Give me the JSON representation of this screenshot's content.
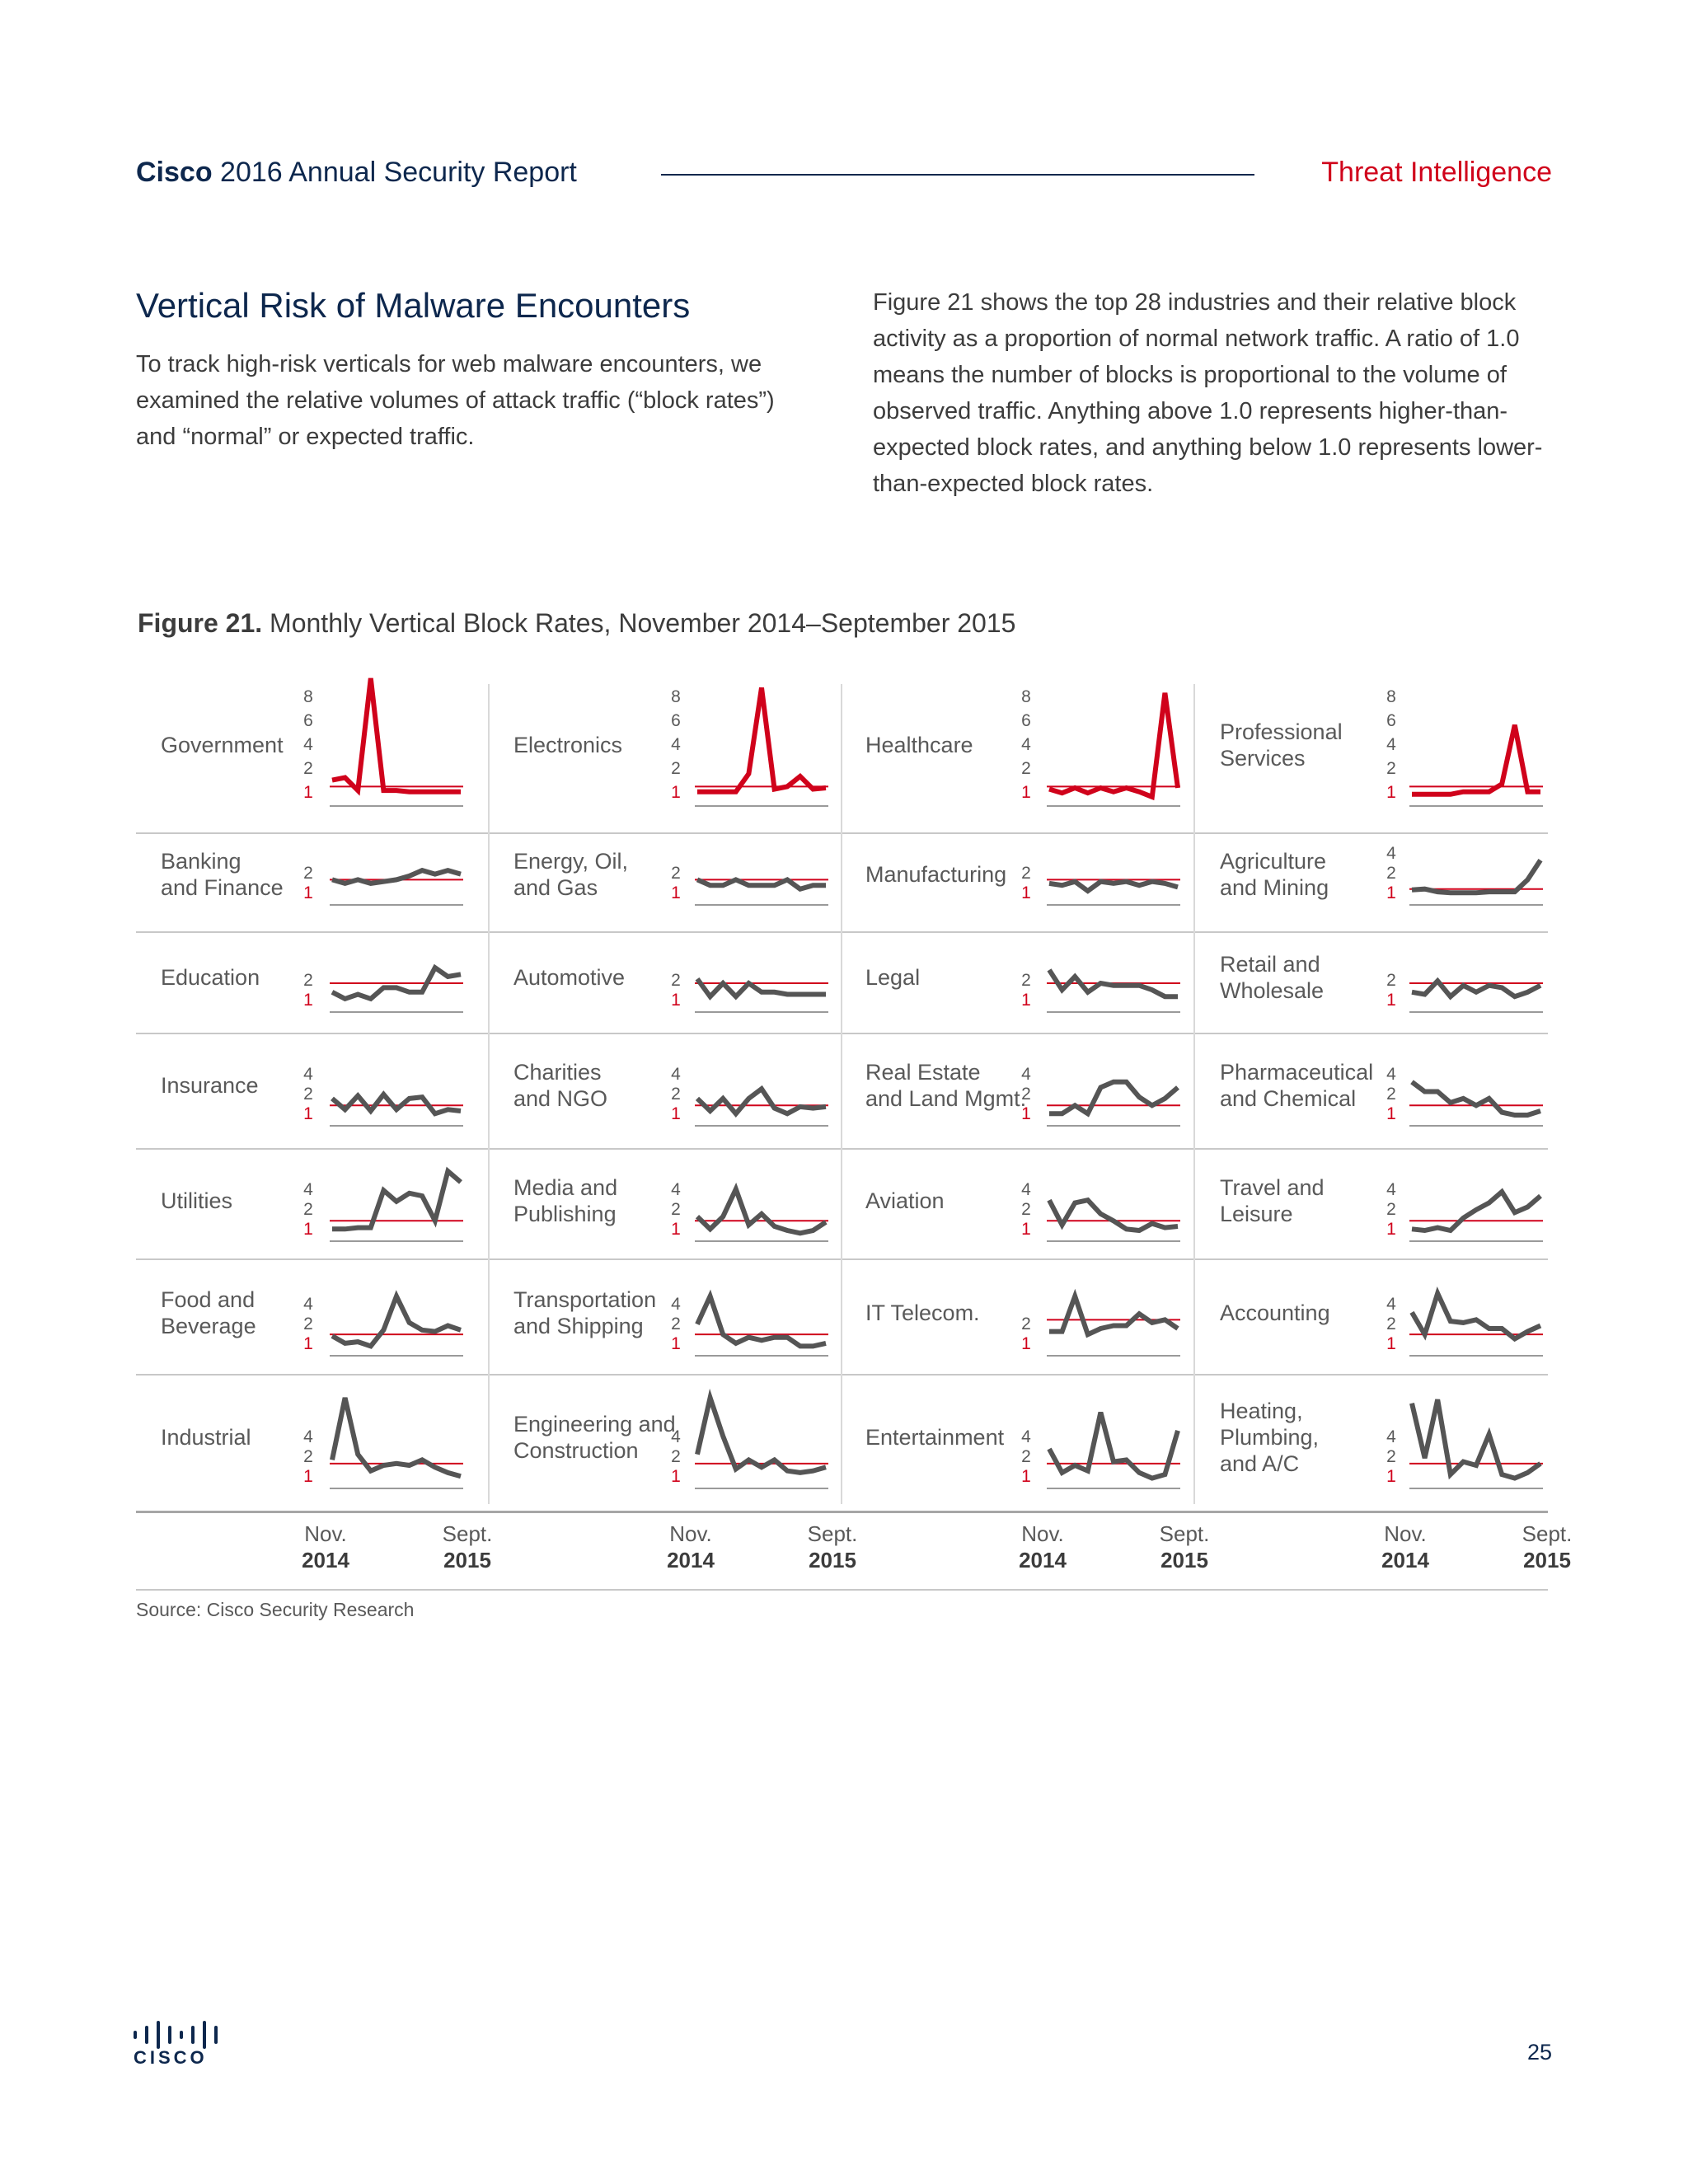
{
  "header": {
    "brand": "Cisco",
    "report": "2016 Annual Security Report",
    "section": "Threat Intelligence"
  },
  "article": {
    "heading": "Vertical Risk of Malware Encounters",
    "intro": "To track high-risk verticals for web malware encounters, we examined the relative volumes of attack traffic (“block rates”) and “normal” or expected traffic.",
    "body": "Figure 21 shows the top 28 industries and their relative block activity as a proportion of normal network traffic. A ratio of 1.0 means the number of blocks is proportional to the volume of observed traffic. Anything above 1.0 represents higher-than-expected block rates, and anything below 1.0 represents lower-than-expected block rates."
  },
  "figure": {
    "label": "Figure 21.",
    "title": "Monthly Vertical Block Rates, November 2014–September 2015",
    "x_start_month": "Nov.",
    "x_start_year": "2014",
    "x_end_month": "Sept.",
    "x_end_year": "2015",
    "source": "Source: Cisco Security Research"
  },
  "footer": {
    "page": "25",
    "logo_text": "CISCO"
  },
  "colors": {
    "accent_red": "#d0021b",
    "navy": "#0d274d",
    "line_gray": "#555555"
  },
  "chart_data": {
    "type": "line",
    "x": [
      "Nov 2014",
      "Dec 2014",
      "Jan 2015",
      "Feb 2015",
      "Mar 2015",
      "Apr 2015",
      "May 2015",
      "Jun 2015",
      "Jul 2015",
      "Aug 2015",
      "Sep 2015"
    ],
    "reference_line": 1.0,
    "panels": [
      {
        "name": "Government",
        "ticks": [
          "8",
          "6",
          "4",
          "2",
          "1"
        ],
        "ymax": 8,
        "color": "red",
        "values": [
          1.5,
          1.7,
          0.7,
          9.5,
          0.7,
          0.7,
          0.6,
          0.6,
          0.6,
          0.6,
          0.6
        ]
      },
      {
        "name": "Electronics",
        "ticks": [
          "8",
          "6",
          "4",
          "2",
          "1"
        ],
        "ymax": 8,
        "color": "red",
        "values": [
          0.6,
          0.6,
          0.6,
          0.6,
          2.0,
          8.7,
          0.8,
          1.0,
          1.8,
          0.8,
          0.9
        ]
      },
      {
        "name": "Healthcare",
        "ticks": [
          "8",
          "6",
          "4",
          "2",
          "1"
        ],
        "ymax": 8,
        "color": "red",
        "values": [
          0.8,
          0.5,
          0.9,
          0.5,
          0.9,
          0.6,
          0.9,
          0.6,
          0.2,
          8.3,
          0.9
        ]
      },
      {
        "name": "Professional\nServices",
        "ticks": [
          "8",
          "6",
          "4",
          "2",
          "1"
        ],
        "ymax": 8,
        "color": "red",
        "values": [
          0.4,
          0.4,
          0.4,
          0.4,
          0.6,
          0.6,
          0.6,
          1.2,
          5.8,
          0.6,
          0.6
        ]
      },
      {
        "name": "Banking\nand Finance",
        "ticks": [
          "2",
          "1"
        ],
        "ymax": 2,
        "color": "gray",
        "values": [
          1.0,
          0.8,
          1.0,
          0.8,
          0.9,
          1.0,
          1.2,
          1.5,
          1.3,
          1.5,
          1.3
        ]
      },
      {
        "name": "Energy, Oil,\nand Gas",
        "ticks": [
          "2",
          "1"
        ],
        "ymax": 2,
        "color": "gray",
        "values": [
          1.0,
          0.7,
          0.7,
          1.0,
          0.7,
          0.7,
          0.7,
          1.0,
          0.5,
          0.7,
          0.7
        ]
      },
      {
        "name": "Manufacturing",
        "ticks": [
          "2",
          "1"
        ],
        "ymax": 2,
        "color": "gray",
        "values": [
          0.8,
          0.7,
          0.9,
          0.4,
          0.9,
          0.8,
          0.9,
          0.7,
          0.9,
          0.8,
          0.6
        ]
      },
      {
        "name": "Agriculture\nand Mining",
        "ticks": [
          "4",
          "2",
          "1"
        ],
        "ymax": 4,
        "color": "gray",
        "values": [
          0.9,
          1.0,
          0.7,
          0.6,
          0.6,
          0.6,
          0.7,
          0.7,
          0.7,
          2.0,
          4.1
        ]
      },
      {
        "name": "Education",
        "ticks": [
          "2",
          "1"
        ],
        "ymax": 2,
        "color": "gray",
        "values": [
          0.6,
          0.3,
          0.5,
          0.3,
          0.8,
          0.8,
          0.6,
          0.6,
          1.7,
          1.3,
          1.4
        ]
      },
      {
        "name": "Automotive",
        "ticks": [
          "2",
          "1"
        ],
        "ymax": 2,
        "color": "gray",
        "values": [
          1.2,
          0.4,
          1.0,
          0.4,
          1.0,
          0.6,
          0.6,
          0.5,
          0.5,
          0.5,
          0.5
        ]
      },
      {
        "name": "Legal",
        "ticks": [
          "2",
          "1"
        ],
        "ymax": 2,
        "color": "gray",
        "values": [
          1.6,
          0.7,
          1.3,
          0.6,
          1.0,
          0.9,
          0.9,
          0.9,
          0.7,
          0.4,
          0.4
        ]
      },
      {
        "name": "Retail and\nWholesale",
        "ticks": [
          "2",
          "1"
        ],
        "ymax": 2,
        "color": "gray",
        "values": [
          0.6,
          0.5,
          1.1,
          0.4,
          0.9,
          0.6,
          0.9,
          0.8,
          0.4,
          0.6,
          0.9
        ]
      },
      {
        "name": "Insurance",
        "ticks": [
          "4",
          "2",
          "1"
        ],
        "ymax": 4,
        "color": "gray",
        "values": [
          1.5,
          0.7,
          1.7,
          0.6,
          1.8,
          0.7,
          1.5,
          1.6,
          0.4,
          0.7,
          0.6
        ]
      },
      {
        "name": "Charities\nand NGO",
        "ticks": [
          "4",
          "2",
          "1"
        ],
        "ymax": 4,
        "color": "gray",
        "values": [
          1.5,
          0.6,
          1.5,
          0.4,
          1.5,
          2.2,
          0.8,
          0.4,
          0.9,
          0.8,
          0.9
        ]
      },
      {
        "name": "Real Estate\nand Land Mgmt.",
        "ticks": [
          "4",
          "2",
          "1"
        ],
        "ymax": 4,
        "color": "gray",
        "values": [
          0.4,
          0.4,
          1.0,
          0.4,
          2.3,
          2.7,
          2.7,
          1.6,
          1.0,
          1.5,
          2.3
        ]
      },
      {
        "name": "Pharmaceutical\nand Chemical",
        "ticks": [
          "4",
          "2",
          "1"
        ],
        "ymax": 4,
        "color": "gray",
        "values": [
          2.7,
          2.0,
          2.0,
          1.2,
          1.5,
          1.0,
          1.5,
          0.5,
          0.3,
          0.3,
          0.6
        ]
      },
      {
        "name": "Utilities",
        "ticks": [
          "4",
          "2",
          "1"
        ],
        "ymax": 4,
        "color": "gray",
        "values": [
          0.4,
          0.4,
          0.5,
          0.5,
          3.2,
          2.4,
          3.0,
          2.8,
          1.0,
          4.6,
          3.8
        ]
      },
      {
        "name": "Media and\nPublishing",
        "ticks": [
          "4",
          "2",
          "1"
        ],
        "ymax": 4,
        "color": "gray",
        "values": [
          1.3,
          0.4,
          1.3,
          3.3,
          0.7,
          1.5,
          0.6,
          0.3,
          0.1,
          0.3,
          0.9
        ]
      },
      {
        "name": "Aviation",
        "ticks": [
          "4",
          "2",
          "1"
        ],
        "ymax": 4,
        "color": "gray",
        "values": [
          2.5,
          0.7,
          2.3,
          2.5,
          1.5,
          1.0,
          0.4,
          0.3,
          0.8,
          0.5,
          0.6
        ]
      },
      {
        "name": "Travel and\nLeisure",
        "ticks": [
          "4",
          "2",
          "1"
        ],
        "ymax": 4,
        "color": "gray",
        "values": [
          0.4,
          0.3,
          0.5,
          0.3,
          1.2,
          1.8,
          2.3,
          3.1,
          1.6,
          2.0,
          2.8
        ]
      },
      {
        "name": "Food and\nBeverage",
        "ticks": [
          "4",
          "2",
          "1"
        ],
        "ymax": 4,
        "color": "gray",
        "values": [
          0.9,
          0.4,
          0.5,
          0.2,
          1.3,
          3.6,
          1.8,
          1.3,
          1.2,
          1.6,
          1.3
        ]
      },
      {
        "name": "Transportation\nand Shipping",
        "ticks": [
          "4",
          "2",
          "1"
        ],
        "ymax": 4,
        "color": "gray",
        "values": [
          1.7,
          3.6,
          1.0,
          0.4,
          0.8,
          0.6,
          0.8,
          0.8,
          0.2,
          0.2,
          0.4
        ]
      },
      {
        "name": "IT Telecom.",
        "ticks": [
          "2",
          "1"
        ],
        "ymax": 2,
        "color": "gray",
        "values": [
          0.6,
          0.6,
          1.8,
          0.5,
          0.7,
          0.8,
          0.8,
          1.2,
          0.9,
          1.0,
          0.7
        ]
      },
      {
        "name": "Accounting",
        "ticks": [
          "4",
          "2",
          "1"
        ],
        "ymax": 4,
        "color": "gray",
        "values": [
          2.5,
          1.0,
          3.8,
          1.9,
          1.8,
          2.0,
          1.4,
          1.4,
          0.7,
          1.2,
          1.6
        ]
      },
      {
        "name": "Industrial",
        "ticks": [
          "4",
          "2",
          "1"
        ],
        "ymax": 4,
        "color": "gray",
        "values": [
          1.2,
          7.4,
          1.5,
          0.6,
          0.9,
          1.0,
          0.9,
          1.2,
          0.8,
          0.5,
          0.3
        ]
      },
      {
        "name": "Engineering and\nConstruction",
        "ticks": [
          "4",
          "2",
          "1"
        ],
        "ymax": 4,
        "color": "gray",
        "values": [
          1.5,
          5.4,
          2.5,
          0.7,
          1.2,
          0.8,
          1.2,
          0.6,
          0.5,
          0.6,
          0.8
        ]
      },
      {
        "name": "Entertainment",
        "ticks": [
          "4",
          "2",
          "1"
        ],
        "ymax": 4,
        "color": "gray",
        "values": [
          1.8,
          0.5,
          0.9,
          0.6,
          3.8,
          1.1,
          1.2,
          0.5,
          0.2,
          0.4,
          2.8
        ]
      },
      {
        "name": "Heating,\nPlumbing,\nand A/C",
        "ticks": [
          "4",
          "2",
          "1"
        ],
        "ymax": 4,
        "color": "gray",
        "values": [
          4.3,
          1.3,
          4.5,
          0.4,
          1.1,
          0.9,
          2.6,
          0.4,
          0.2,
          0.5,
          1.0
        ]
      }
    ]
  }
}
